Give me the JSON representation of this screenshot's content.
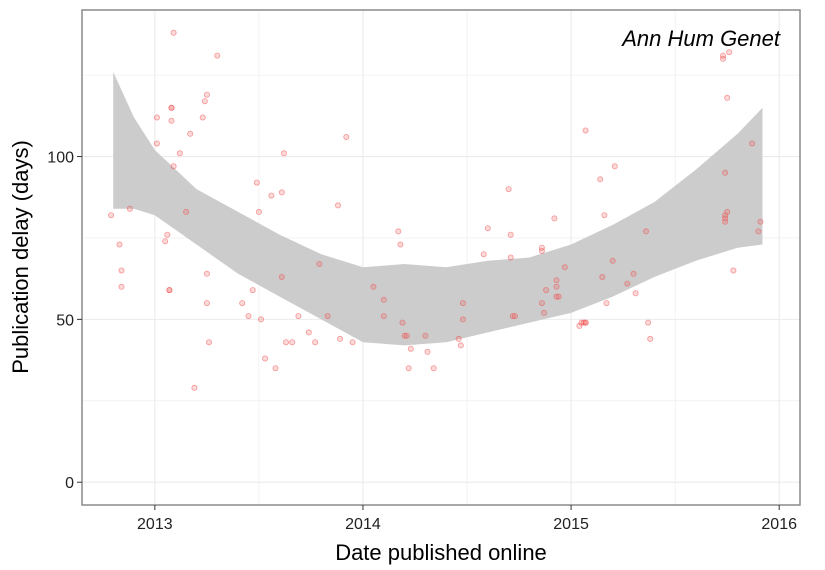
{
  "chart_data": {
    "type": "scatter",
    "title": "",
    "annotation": "Ann Hum Genet",
    "xlabel": "Date published online",
    "ylabel": "Publication delay (days)",
    "x_ticks": [
      {
        "value": 2013,
        "label": "2013"
      },
      {
        "value": 2014,
        "label": "2014"
      },
      {
        "value": 2015,
        "label": "2015"
      },
      {
        "value": 2016,
        "label": "2016"
      }
    ],
    "y_ticks": [
      {
        "value": 0,
        "label": "0"
      },
      {
        "value": 50,
        "label": "50"
      },
      {
        "value": 100,
        "label": "100"
      }
    ],
    "xlim": [
      2012.65,
      2016.1
    ],
    "ylim": [
      -7,
      145
    ],
    "grid": true,
    "legend": "none",
    "colors": {
      "points": "#f05050",
      "smooth_band": "#cccccc",
      "grid": "#ebebeb",
      "frame": "#8a8a8a"
    },
    "smooth_band": {
      "x": [
        2012.8,
        2012.9,
        2013.0,
        2013.2,
        2013.4,
        2013.6,
        2013.8,
        2014.0,
        2014.2,
        2014.4,
        2014.6,
        2014.8,
        2015.0,
        2015.2,
        2015.4,
        2015.6,
        2015.8,
        2015.92
      ],
      "lower": [
        84,
        84,
        82,
        73,
        64,
        57,
        50,
        43,
        42,
        43,
        46,
        49,
        52,
        57,
        63,
        68,
        72,
        73
      ],
      "upper": [
        126,
        112,
        102,
        90,
        83,
        76,
        70,
        66,
        67,
        66,
        68,
        69,
        73,
        79,
        86,
        96,
        107,
        115
      ]
    },
    "series": [
      {
        "x": [
          2012.79,
          2012.83,
          2012.84,
          2012.84,
          2012.88,
          2013.01,
          2013.01,
          2013.05,
          2013.06,
          2013.07,
          2013.07,
          2013.08,
          2013.08,
          2013.08,
          2013.09,
          2013.09,
          2013.12,
          2013.15,
          2013.17,
          2013.19,
          2013.23,
          2013.24,
          2013.25,
          2013.25,
          2013.25,
          2013.26,
          2013.3,
          2013.42,
          2013.45,
          2013.47,
          2013.49,
          2013.5,
          2013.51,
          2013.53,
          2013.56,
          2013.58,
          2013.61,
          2013.61,
          2013.62,
          2013.63,
          2013.66,
          2013.69,
          2013.74,
          2013.77,
          2013.79,
          2013.83,
          2013.88,
          2013.89,
          2013.92,
          2013.95,
          2014.05,
          2014.1,
          2014.1,
          2014.17,
          2014.18,
          2014.19,
          2014.2,
          2014.21,
          2014.22,
          2014.23,
          2014.3,
          2014.31,
          2014.34,
          2014.46,
          2014.47,
          2014.48,
          2014.48,
          2014.58,
          2014.6,
          2014.7,
          2014.71,
          2014.71,
          2014.72,
          2014.73,
          2014.86,
          2014.86,
          2014.86,
          2014.87,
          2014.88,
          2014.92,
          2014.93,
          2014.93,
          2014.93,
          2014.94,
          2014.97,
          2015.04,
          2015.05,
          2015.06,
          2015.07,
          2015.07,
          2015.07,
          2015.14,
          2015.15,
          2015.16,
          2015.17,
          2015.2,
          2015.21,
          2015.27,
          2015.3,
          2015.31,
          2015.36,
          2015.37,
          2015.38,
          2015.73,
          2015.73,
          2015.74,
          2015.74,
          2015.74,
          2015.74,
          2015.75,
          2015.75,
          2015.76,
          2015.78,
          2015.87,
          2015.9,
          2015.91
        ],
        "y": [
          82,
          73,
          65,
          60,
          84,
          112,
          104,
          74,
          76,
          59,
          59,
          115,
          115,
          111,
          97,
          138,
          101,
          83,
          107,
          29,
          112,
          117,
          119,
          64,
          55,
          43,
          131,
          55,
          51,
          59,
          92,
          83,
          50,
          38,
          88,
          35,
          63,
          89,
          101,
          43,
          43,
          51,
          46,
          43,
          67,
          51,
          85,
          44,
          106,
          43,
          60,
          56,
          51,
          77,
          73,
          49,
          45,
          45,
          35,
          41,
          45,
          40,
          35,
          44,
          42,
          50,
          55,
          70,
          78,
          90,
          76,
          69,
          51,
          51,
          71,
          72,
          55,
          52,
          59,
          81,
          62,
          60,
          57,
          57,
          66,
          48,
          49,
          49,
          108,
          49,
          49,
          93,
          63,
          82,
          55,
          68,
          97,
          61,
          64,
          58,
          77,
          49,
          44,
          130,
          131,
          82,
          81,
          80,
          95,
          118,
          83,
          132,
          65,
          104,
          77,
          80
        ]
      }
    ]
  }
}
